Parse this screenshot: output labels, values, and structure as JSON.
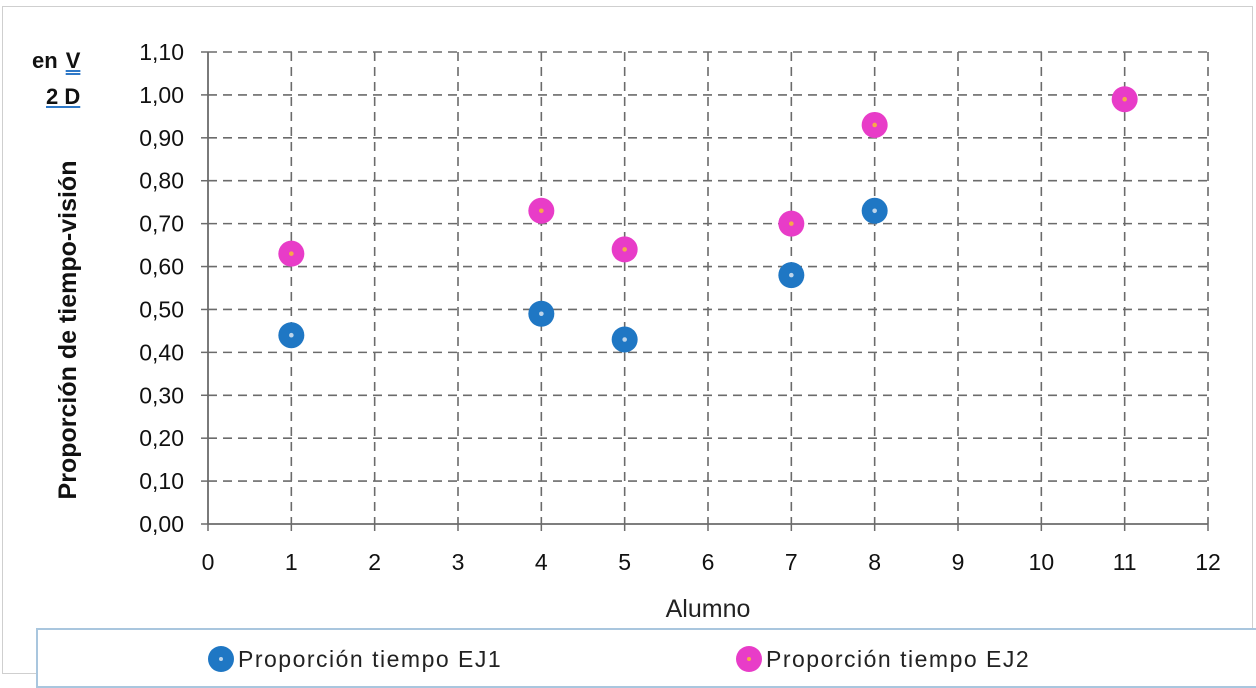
{
  "chart_data": {
    "type": "scatter",
    "title": "",
    "xlabel": "Alumno",
    "ylabel": "Proporción de tiempo-visión",
    "ylabel_fragments": [
      "en",
      "V",
      "2 D"
    ],
    "xlim": [
      0,
      12
    ],
    "ylim": [
      0,
      1.1
    ],
    "x_ticks": [
      "0",
      "1",
      "2",
      "3",
      "4",
      "5",
      "6",
      "7",
      "8",
      "9",
      "10",
      "11",
      "12"
    ],
    "y_ticks": [
      "0,00",
      "0,10",
      "0,20",
      "0,30",
      "0,40",
      "0,50",
      "0,60",
      "0,70",
      "0,80",
      "0,90",
      "1,00",
      "1,10"
    ],
    "grid": true,
    "legend_position": "bottom",
    "series": [
      {
        "name": "Proporción tiempo EJ1",
        "color": "#1f77c4",
        "center_color": "#bcd4ea",
        "points": [
          {
            "x": 1,
            "y": 0.44
          },
          {
            "x": 4,
            "y": 0.49
          },
          {
            "x": 5,
            "y": 0.43
          },
          {
            "x": 7,
            "y": 0.58
          },
          {
            "x": 8,
            "y": 0.73
          }
        ]
      },
      {
        "name": "Proporción tiempo EJ2",
        "color": "#e83cc8",
        "center_color": "#f7a84a",
        "points": [
          {
            "x": 1,
            "y": 0.63
          },
          {
            "x": 4,
            "y": 0.73
          },
          {
            "x": 5,
            "y": 0.64
          },
          {
            "x": 7,
            "y": 0.7
          },
          {
            "x": 8,
            "y": 0.93
          },
          {
            "x": 11,
            "y": 0.99
          }
        ]
      }
    ]
  }
}
